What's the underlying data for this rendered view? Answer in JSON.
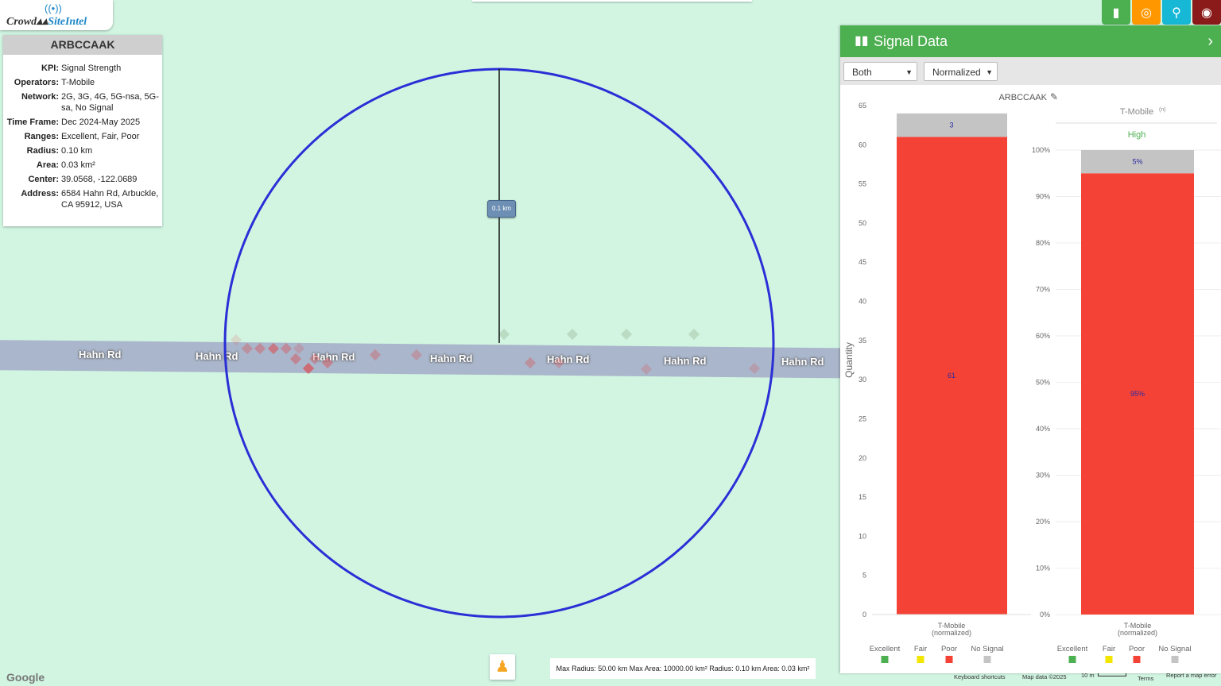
{
  "logo": {
    "wave": "((•))",
    "word1": "Crowd",
    "word2": "SiteIntel"
  },
  "info": {
    "title": "ARBCCAAK",
    "rows": [
      {
        "k": "KPI:",
        "v": "Signal Strength"
      },
      {
        "k": "Operators:",
        "v": "T-Mobile"
      },
      {
        "k": "Network:",
        "v": "2G, 3G, 4G, 5G-nsa, 5G-sa, No Signal"
      },
      {
        "k": "Time Frame:",
        "v": "Dec 2024-May 2025"
      },
      {
        "k": "Ranges:",
        "v": "Excellent, Fair, Poor"
      },
      {
        "k": "Radius:",
        "v": "0.10 km"
      },
      {
        "k": "Area:",
        "v": "0.03 km²"
      },
      {
        "k": "Center:",
        "v": "39.0568, -122.0689"
      },
      {
        "k": "Address:",
        "v": "6584 Hahn Rd, Arbuckle, CA 95912, USA"
      }
    ]
  },
  "map": {
    "road_name": "Hahn Rd",
    "distance_label": "0.1 km",
    "google": "Google",
    "stats": "Max Radius: 50.00 km Max Area: 10000.00 km² Radius: 0.10 km Area: 0.03 km²",
    "footer": {
      "shortcuts": "Keyboard shortcuts",
      "mapdata": "Map data ©2025",
      "scale": "10 m",
      "terms": "Terms",
      "report": "Report a map error"
    }
  },
  "toolbar": {
    "buttons": [
      {
        "name": "chart-button",
        "icon": "bar-chart-icon",
        "glyph": "▮",
        "color": "#4caf50"
      },
      {
        "name": "target-button",
        "icon": "target-icon",
        "glyph": "◎",
        "color": "#ff9800"
      },
      {
        "name": "location-button",
        "icon": "location-pin-icon",
        "glyph": "⚲",
        "color": "#17b8d6"
      },
      {
        "name": "globe-button",
        "icon": "globe-icon",
        "glyph": "◉",
        "color": "#8b1a1a"
      }
    ]
  },
  "panel": {
    "title": "Signal Data",
    "select1": "Both",
    "select2": "Normalized",
    "chart1_title": "ARBCCAAK",
    "chart2_title": "T-Mobile",
    "chart2_sup": "(n)",
    "chart2_sub": "High",
    "ylabel": "Quantity",
    "legend": [
      {
        "label": "Excellent",
        "color": "#4caf50"
      },
      {
        "label": "Fair",
        "color": "#f2e600"
      },
      {
        "label": "Poor",
        "color": "#f44336"
      },
      {
        "label": "No Signal",
        "color": "#c4c4c4"
      }
    ]
  },
  "chart_data": [
    {
      "type": "bar",
      "title": "ARBCCAAK",
      "ylabel": "Quantity",
      "categories": [
        "T-Mobile (normalized)"
      ],
      "ylim": [
        0,
        65
      ],
      "yticks": [
        0,
        5,
        10,
        15,
        20,
        25,
        30,
        35,
        40,
        45,
        50,
        55,
        60,
        65
      ],
      "stacked": true,
      "series": [
        {
          "name": "Poor",
          "values": [
            61
          ],
          "color": "#f44336",
          "label": "61"
        },
        {
          "name": "No Signal",
          "values": [
            3
          ],
          "color": "#c4c4c4",
          "label": "3"
        }
      ]
    },
    {
      "type": "bar",
      "title": "T-Mobile",
      "subtitle": "High",
      "categories": [
        "T-Mobile (normalized)"
      ],
      "ylim": [
        0,
        100
      ],
      "yticks": [
        "0%",
        "10%",
        "20%",
        "30%",
        "40%",
        "50%",
        "60%",
        "70%",
        "80%",
        "90%",
        "100%"
      ],
      "stacked": true,
      "series": [
        {
          "name": "Poor",
          "values": [
            95
          ],
          "color": "#f44336",
          "label": "95%"
        },
        {
          "name": "No Signal",
          "values": [
            5
          ],
          "color": "#c4c4c4",
          "label": "5%"
        }
      ]
    }
  ]
}
